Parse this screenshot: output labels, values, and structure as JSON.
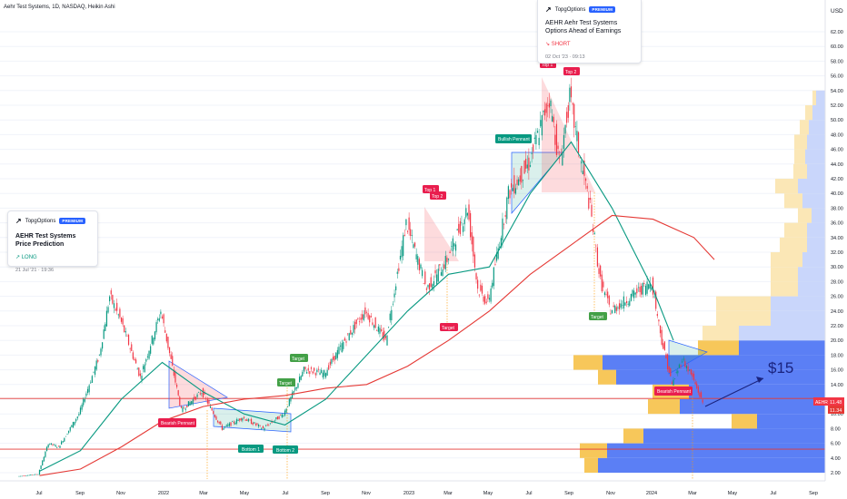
{
  "header": {
    "symbol_info": "Aehr Test Systems, 1D, NASDAQ, Heikin Ashi",
    "currency": "USD"
  },
  "ideas": [
    {
      "brand": "TopgOptions",
      "badge": "PREMIUM",
      "title": "AEHR Test Systems Price Prediction",
      "direction": "LONG",
      "direction_icon": "arrow-up-right-icon",
      "timestamp": "21 Jul '21 · 19:36"
    },
    {
      "brand": "TopgOptions",
      "badge": "PREMIUM",
      "title": "AEHR Aehr Test Systems  Options Ahead of Earnings",
      "direction": "SHORT",
      "direction_icon": "arrow-down-right-icon",
      "timestamp": "02 Oct '23 · 09:13"
    }
  ],
  "pattern_labels": {
    "bearish_pennant_1": "Bearish Pennant",
    "bearish_pennant_2": "Bearish Pennant",
    "bullish_pennant": "Bullish Pennant",
    "bottom_1": "Bottom 1",
    "bottom_2": "Bottom 2",
    "top_1a": "Top 1",
    "top_2a": "Top 2",
    "top_1b": "Top 1",
    "top_2b": "Top 2",
    "target_1": "Target",
    "target_2": "Target",
    "target_3": "Target",
    "target_4": "Target"
  },
  "annotation": "$15",
  "price_badges": {
    "ticker": "AEHR",
    "last": "11.48",
    "second": "11.34"
  },
  "colors": {
    "up_candle": "#089981",
    "down_candle": "#f23645",
    "ma_green": "#089981",
    "ma_red": "#e53935",
    "volume_profile_up": "#5b7ff5",
    "volume_profile_down": "#f7c75a",
    "target_green": "#43a047",
    "label_red": "#e91e4e",
    "pennant_blue": "#2962ff"
  },
  "chart_data": {
    "type": "candlestick",
    "x_ticks": [
      "Jul",
      "Sep",
      "Nov",
      "2022",
      "Mar",
      "May",
      "Jul",
      "Sep",
      "Nov",
      "2023",
      "Mar",
      "May",
      "Jul",
      "Sep",
      "Nov",
      "2024",
      "Mar",
      "May",
      "Jul",
      "Sep"
    ],
    "y_ticks": [
      "2.00",
      "4.00",
      "6.00",
      "8.00",
      "10.00",
      "12.00",
      "14.00",
      "16.00",
      "18.00",
      "20.00",
      "22.00",
      "24.00",
      "26.00",
      "28.00",
      "30.00",
      "32.00",
      "34.00",
      "36.00",
      "38.00",
      "40.00",
      "42.00",
      "44.00",
      "46.00",
      "48.00",
      "50.00",
      "52.00",
      "54.00",
      "56.00",
      "58.00",
      "60.00",
      "62.00"
    ],
    "ylim": [
      1.5,
      63
    ],
    "price_path": [
      [
        "Jun 2021",
        1.5
      ],
      [
        "Jul 2021",
        1.8
      ],
      [
        "Jul 2021",
        6.0
      ],
      [
        "Aug 2021",
        5.5
      ],
      [
        "Sep 2021",
        10.0
      ],
      [
        "Oct 2021",
        18.0
      ],
      [
        "Oct 2021",
        26.0
      ],
      [
        "Nov 2021",
        23.0
      ],
      [
        "Dec 2021",
        15.0
      ],
      [
        "Jan 2022",
        24.0
      ],
      [
        "Feb 2022",
        10.5
      ],
      [
        "Mar 2022",
        13.0
      ],
      [
        "Apr 2022",
        8.0
      ],
      [
        "May 2022",
        9.5
      ],
      [
        "Jun 2022",
        8.0
      ],
      [
        "Jul 2022",
        10.0
      ],
      [
        "Aug 2022",
        16.0
      ],
      [
        "Sep 2022",
        15.5
      ],
      [
        "Oct 2022",
        20.0
      ],
      [
        "Nov 2022",
        24.0
      ],
      [
        "Dec 2022",
        20.0
      ],
      [
        "Jan 2023",
        36.0
      ],
      [
        "Feb 2023",
        27.0
      ],
      [
        "Mar 2023",
        31.0
      ],
      [
        "Apr 2023",
        38.0
      ],
      [
        "Apr 2023",
        27.0
      ],
      [
        "May 2023",
        25.0
      ],
      [
        "Jun 2023",
        40.0
      ],
      [
        "Jul 2023",
        44.0
      ],
      [
        "Aug 2023",
        53.0
      ],
      [
        "Aug 2023",
        44.0
      ],
      [
        "Sep 2023",
        53.0
      ],
      [
        "Sep 2023",
        45.0
      ],
      [
        "Oct 2023",
        38.0
      ],
      [
        "Oct 2023",
        28.0
      ],
      [
        "Nov 2023",
        24.0
      ],
      [
        "Dec 2023",
        26.0
      ],
      [
        "Jan 2024",
        28.0
      ],
      [
        "Jan 2024",
        20.0
      ],
      [
        "Feb 2024",
        14.0
      ],
      [
        "Feb 2024",
        17.5
      ],
      [
        "Mar 2024",
        15.0
      ],
      [
        "Mar 2024",
        11.5
      ]
    ],
    "moving_averages": [
      {
        "color": "#089981",
        "values": [
          [
            "Jul 2021",
            2.2
          ],
          [
            "Sep 2021",
            5.0
          ],
          [
            "Nov 2021",
            12.0
          ],
          [
            "Jan 2022",
            17.0
          ],
          [
            "Mar 2022",
            13.0
          ],
          [
            "May 2022",
            10.0
          ],
          [
            "Jul 2022",
            8.5
          ],
          [
            "Sep 2022",
            12.0
          ],
          [
            "Nov 2022",
            18.0
          ],
          [
            "Jan 2023",
            24.0
          ],
          [
            "Mar 2023",
            29.0
          ],
          [
            "May 2023",
            30.0
          ],
          [
            "Jul 2023",
            40.0
          ],
          [
            "Sep 2023",
            47.0
          ],
          [
            "Nov 2023",
            38.0
          ],
          [
            "Jan 2024",
            27.0
          ],
          [
            "Feb 2024",
            20.0
          ]
        ]
      },
      {
        "color": "#e53935",
        "values": [
          [
            "Jul 2021",
            1.6
          ],
          [
            "Sep 2021",
            2.5
          ],
          [
            "Nov 2021",
            5.5
          ],
          [
            "Jan 2022",
            9.0
          ],
          [
            "Mar 2022",
            11.0
          ],
          [
            "May 2022",
            12.0
          ],
          [
            "Jul 2022",
            12.5
          ],
          [
            "Sep 2022",
            13.5
          ],
          [
            "Nov 2022",
            14.0
          ],
          [
            "Jan 2023",
            16.5
          ],
          [
            "Mar 2023",
            20.0
          ],
          [
            "May 2023",
            24.0
          ],
          [
            "Jul 2023",
            29.0
          ],
          [
            "Sep 2023",
            33.0
          ],
          [
            "Nov 2023",
            37.0
          ],
          [
            "Jan 2024",
            36.5
          ],
          [
            "Mar 2024",
            34.0
          ],
          [
            "Apr 2024",
            31.0
          ]
        ]
      }
    ],
    "horizontal_lines": [
      5.2,
      12.1
    ],
    "volume_profile": [
      {
        "price": 3.0,
        "up": 250,
        "down": 15
      },
      {
        "price": 5.0,
        "up": 240,
        "down": 30
      },
      {
        "price": 7.0,
        "up": 200,
        "down": 22
      },
      {
        "price": 9.0,
        "up": 75,
        "down": 28
      },
      {
        "price": 11.0,
        "up": 160,
        "down": 35
      },
      {
        "price": 13.0,
        "up": 150,
        "down": 40
      },
      {
        "price": 15.0,
        "up": 230,
        "down": 20
      },
      {
        "price": 17.0,
        "up": 245,
        "down": 32
      },
      {
        "price": 19.0,
        "up": 95,
        "down": 45
      },
      {
        "price": 21.0,
        "up": 95,
        "down": 40
      },
      {
        "price": 23.0,
        "up": 60,
        "down": 60
      },
      {
        "price": 25.0,
        "up": 60,
        "down": 60
      },
      {
        "price": 27.0,
        "up": 30,
        "down": 30
      },
      {
        "price": 29.0,
        "up": 30,
        "down": 30
      },
      {
        "price": 31.0,
        "up": 25,
        "down": 35
      },
      {
        "price": 33.0,
        "up": 20,
        "down": 30
      },
      {
        "price": 35.0,
        "up": 20,
        "down": 25
      },
      {
        "price": 37.0,
        "up": 15,
        "down": 15
      },
      {
        "price": 39.0,
        "up": 25,
        "down": 20
      },
      {
        "price": 41.0,
        "up": 30,
        "down": 25
      },
      {
        "price": 43.0,
        "up": 20,
        "down": 15
      },
      {
        "price": 45.0,
        "up": 22,
        "down": 12
      },
      {
        "price": 47.0,
        "up": 20,
        "down": 14
      },
      {
        "price": 49.0,
        "up": 18,
        "down": 10
      },
      {
        "price": 51.0,
        "up": 14,
        "down": 8
      },
      {
        "price": 53.0,
        "up": 10,
        "down": 4
      }
    ]
  }
}
